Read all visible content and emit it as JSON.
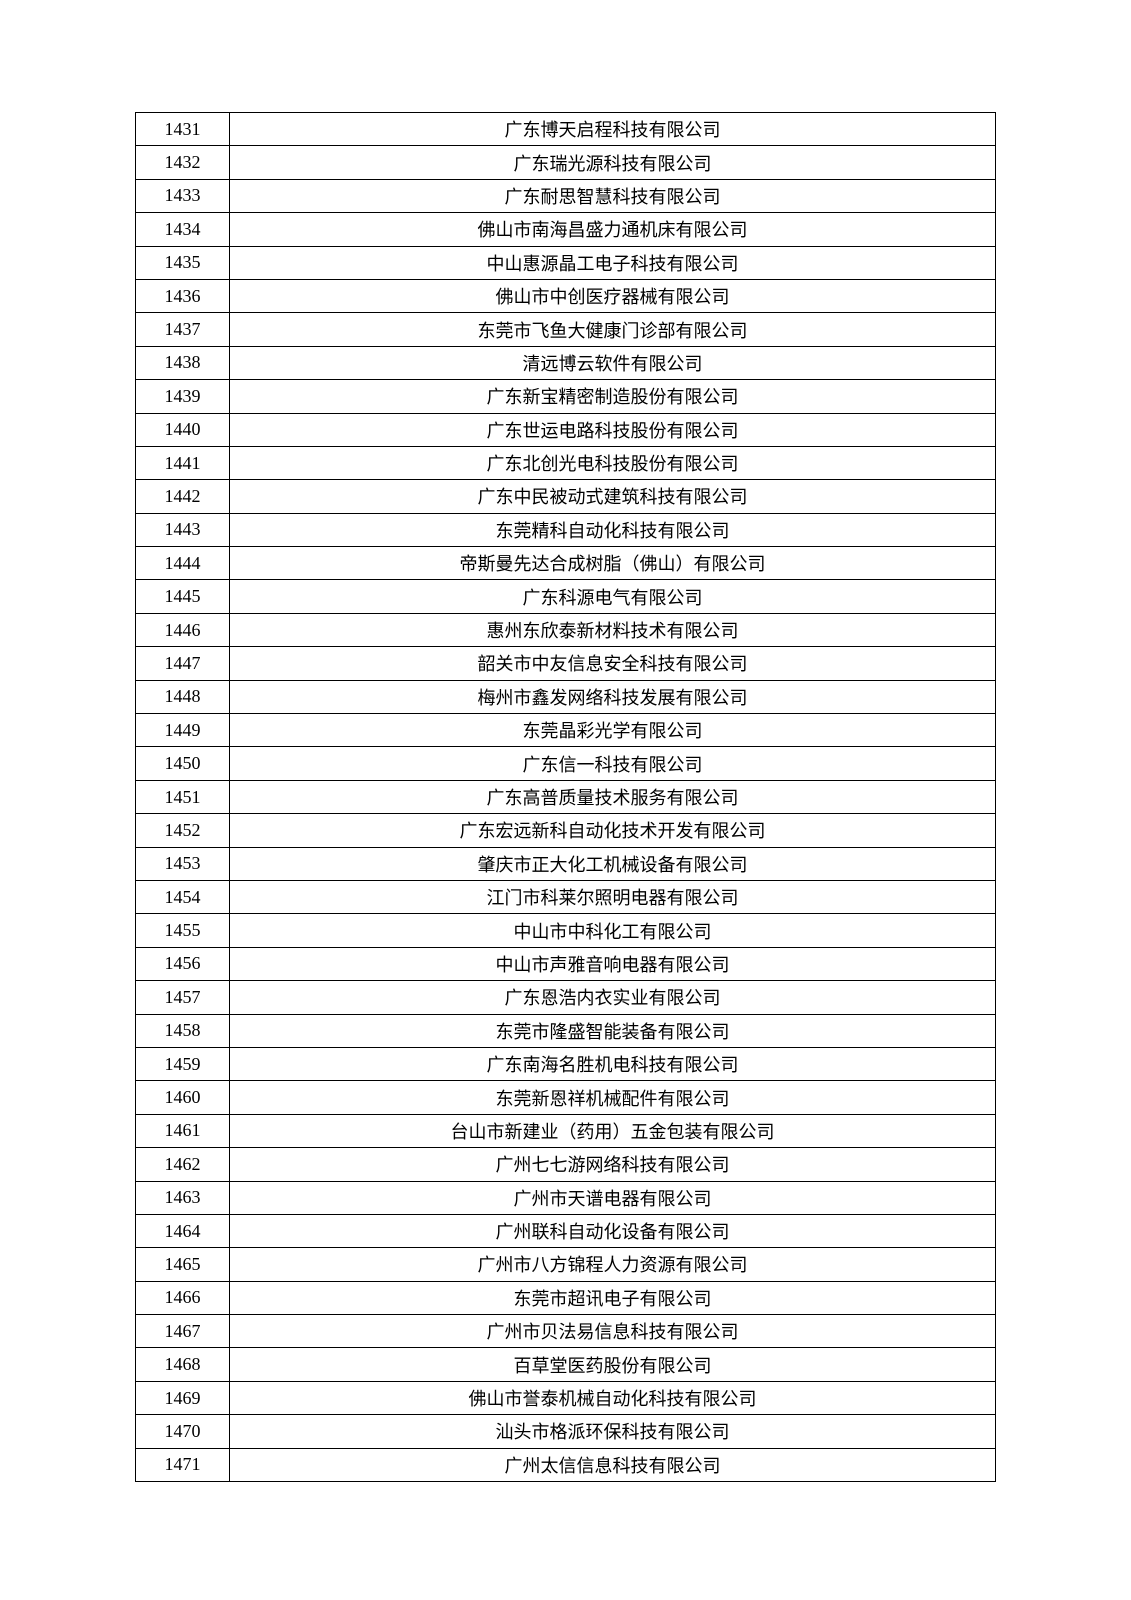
{
  "table": {
    "type": "table",
    "columns": [
      "index",
      "company_name"
    ],
    "column_widths": [
      "94px",
      "auto"
    ],
    "border_color": "#000000",
    "background_color": "#ffffff",
    "font_size": 18,
    "row_height": 33.4,
    "text_color": "#000000",
    "index_font_family": "Times New Roman, serif",
    "name_font_family": "SimSun, 宋体, serif",
    "rows": [
      {
        "index": "1431",
        "name": "广东博天启程科技有限公司"
      },
      {
        "index": "1432",
        "name": "广东瑞光源科技有限公司"
      },
      {
        "index": "1433",
        "name": "广东耐思智慧科技有限公司"
      },
      {
        "index": "1434",
        "name": "佛山市南海昌盛力通机床有限公司"
      },
      {
        "index": "1435",
        "name": "中山惠源晶工电子科技有限公司"
      },
      {
        "index": "1436",
        "name": "佛山市中创医疗器械有限公司"
      },
      {
        "index": "1437",
        "name": "东莞市飞鱼大健康门诊部有限公司"
      },
      {
        "index": "1438",
        "name": "清远博云软件有限公司"
      },
      {
        "index": "1439",
        "name": "广东新宝精密制造股份有限公司"
      },
      {
        "index": "1440",
        "name": "广东世运电路科技股份有限公司"
      },
      {
        "index": "1441",
        "name": "广东北创光电科技股份有限公司"
      },
      {
        "index": "1442",
        "name": "广东中民被动式建筑科技有限公司"
      },
      {
        "index": "1443",
        "name": "东莞精科自动化科技有限公司"
      },
      {
        "index": "1444",
        "name": "帝斯曼先达合成树脂（佛山）有限公司"
      },
      {
        "index": "1445",
        "name": "广东科源电气有限公司"
      },
      {
        "index": "1446",
        "name": "惠州东欣泰新材料技术有限公司"
      },
      {
        "index": "1447",
        "name": "韶关市中友信息安全科技有限公司"
      },
      {
        "index": "1448",
        "name": "梅州市鑫发网络科技发展有限公司"
      },
      {
        "index": "1449",
        "name": "东莞晶彩光学有限公司"
      },
      {
        "index": "1450",
        "name": "广东信一科技有限公司"
      },
      {
        "index": "1451",
        "name": "广东高普质量技术服务有限公司"
      },
      {
        "index": "1452",
        "name": "广东宏远新科自动化技术开发有限公司"
      },
      {
        "index": "1453",
        "name": "肇庆市正大化工机械设备有限公司"
      },
      {
        "index": "1454",
        "name": "江门市科莱尔照明电器有限公司"
      },
      {
        "index": "1455",
        "name": "中山市中科化工有限公司"
      },
      {
        "index": "1456",
        "name": "中山市声雅音响电器有限公司"
      },
      {
        "index": "1457",
        "name": "广东恩浩内衣实业有限公司"
      },
      {
        "index": "1458",
        "name": "东莞市隆盛智能装备有限公司"
      },
      {
        "index": "1459",
        "name": "广东南海名胜机电科技有限公司"
      },
      {
        "index": "1460",
        "name": "东莞新恩祥机械配件有限公司"
      },
      {
        "index": "1461",
        "name": "台山市新建业（药用）五金包装有限公司"
      },
      {
        "index": "1462",
        "name": "广州七七游网络科技有限公司"
      },
      {
        "index": "1463",
        "name": "广州市天谱电器有限公司"
      },
      {
        "index": "1464",
        "name": "广州联科自动化设备有限公司"
      },
      {
        "index": "1465",
        "name": "广州市八方锦程人力资源有限公司"
      },
      {
        "index": "1466",
        "name": "东莞市超讯电子有限公司"
      },
      {
        "index": "1467",
        "name": "广州市贝法易信息科技有限公司"
      },
      {
        "index": "1468",
        "name": "百草堂医药股份有限公司"
      },
      {
        "index": "1469",
        "name": "佛山市誉泰机械自动化科技有限公司"
      },
      {
        "index": "1470",
        "name": "汕头市格派环保科技有限公司"
      },
      {
        "index": "1471",
        "name": "广州太信信息科技有限公司"
      }
    ]
  }
}
